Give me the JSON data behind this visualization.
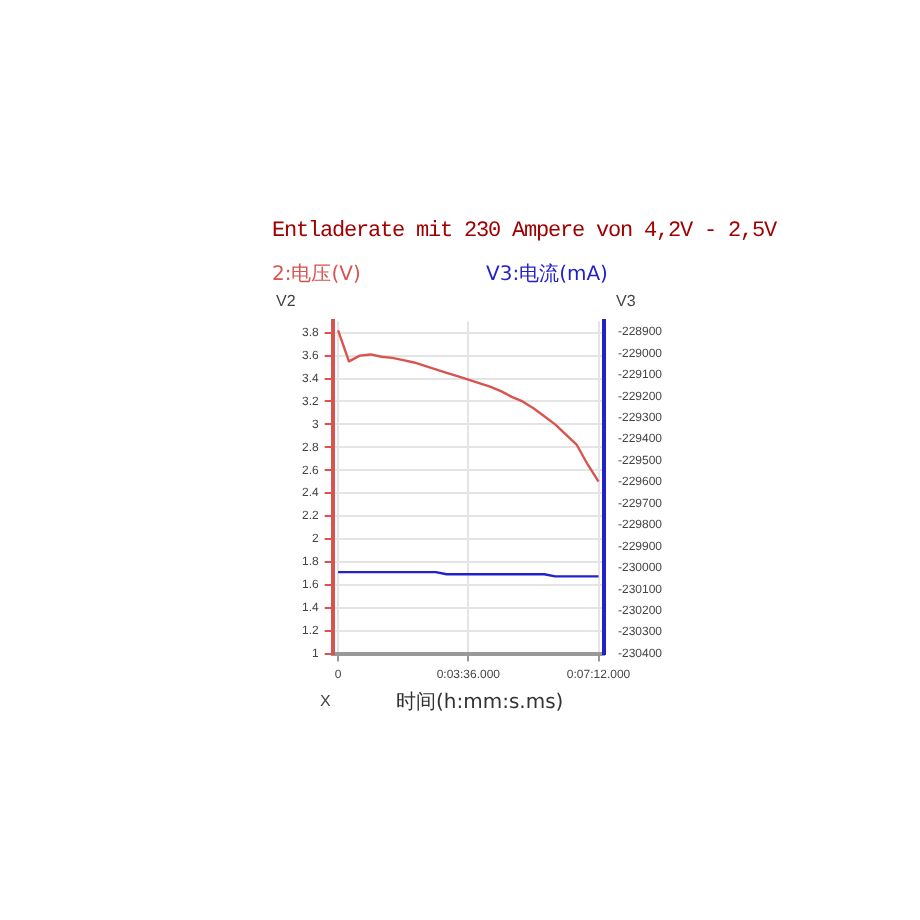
{
  "chart_data": {
    "type": "line",
    "title": "Entladerate mit 230 Ampere von 4,2V - 2,5V",
    "ylabel": "2:电压(V)",
    "y2label": "V3:电流(mA)",
    "xlabel": "时间(h:mm:s.ms)",
    "annotations": [
      "V2",
      "V3",
      "X"
    ],
    "categories": [
      "0",
      null,
      null,
      null,
      null,
      null,
      null,
      null,
      null,
      null,
      null,
      null,
      "0:03:36.000",
      null,
      null,
      null,
      null,
      null,
      null,
      null,
      null,
      null,
      null,
      null,
      "0:07:12.000"
    ],
    "ylim": [
      1,
      3.9
    ],
    "yticks": [
      1,
      1.2,
      1.4,
      1.6,
      1.8,
      2,
      2.2,
      2.4,
      2.6,
      2.8,
      3,
      3.2,
      3.4,
      3.6,
      3.8
    ],
    "y2lim": [
      -230400,
      -228850
    ],
    "y2ticks": [
      -230400,
      -230300,
      -230200,
      -230100,
      -230000,
      -229900,
      -229800,
      -229700,
      -229600,
      -229500,
      -229400,
      -229300,
      -229200,
      -229100,
      -229000,
      -228900
    ],
    "grid": true,
    "marker": "none",
    "line_style": "solid",
    "series": [
      {
        "color": "#d9534f",
        "values": [
          3.82,
          3.55,
          3.6,
          3.61,
          3.59,
          3.58,
          3.56,
          3.54,
          3.51,
          3.48,
          3.45,
          3.42,
          3.39,
          3.36,
          3.33,
          3.29,
          3.24,
          3.2,
          3.14,
          3.07,
          3.0,
          2.91,
          2.82,
          2.65,
          2.5
        ]
      },
      {
        "color": "#2222cc",
        "axis": "y2",
        "values": [
          -230020,
          -230020,
          -230020,
          -230020,
          -230020,
          -230020,
          -230020,
          -230020,
          -230020,
          -230020,
          -230030,
          -230030,
          -230030,
          -230030,
          -230030,
          -230030,
          -230030,
          -230030,
          -230030,
          -230030,
          -230040,
          -230040,
          -230040,
          -230040,
          -230040
        ]
      }
    ]
  }
}
